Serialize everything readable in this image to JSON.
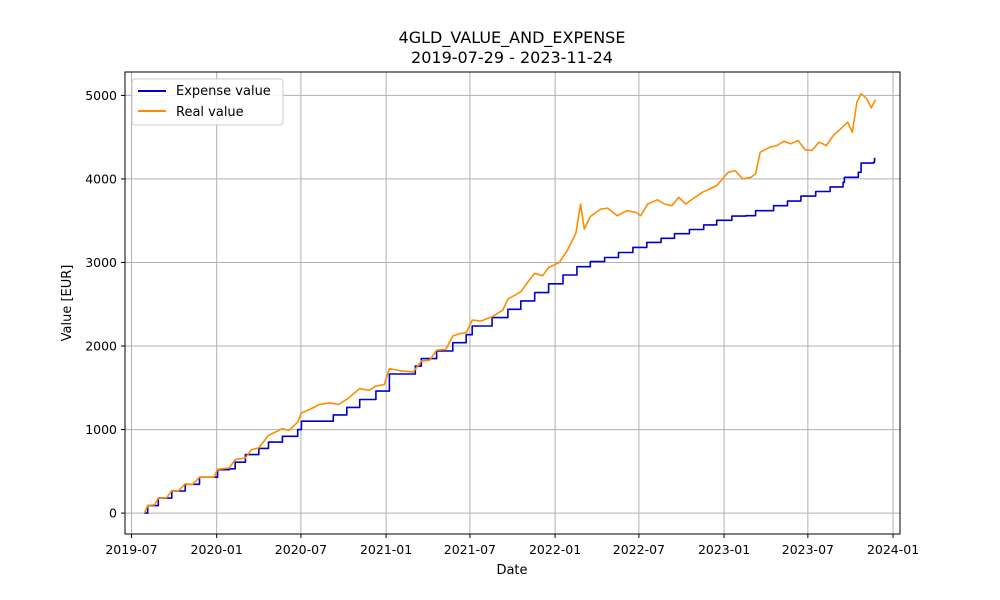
{
  "chart_data": {
    "type": "line",
    "title": "4GLD_VALUE_AND_EXPENSE",
    "subtitle": "2019-07-29 - 2023-11-24",
    "xlabel": "Date",
    "ylabel": "Value [EUR]",
    "x_range": [
      "2019-06-17",
      "2024-01-16"
    ],
    "ylim": [
      -250,
      5280
    ],
    "x_ticks": [
      "2019-07",
      "2020-01",
      "2020-07",
      "2021-01",
      "2021-07",
      "2022-01",
      "2022-07",
      "2023-01",
      "2023-07",
      "2024-01"
    ],
    "x_tick_dates": [
      "2019-07-01",
      "2020-01-01",
      "2020-07-01",
      "2021-01-01",
      "2021-07-01",
      "2022-01-01",
      "2022-07-01",
      "2023-01-01",
      "2023-07-01",
      "2024-01-01"
    ],
    "y_ticks": [
      0,
      1000,
      2000,
      3000,
      4000,
      5000
    ],
    "grid": true,
    "legend_position": "top-left",
    "series": [
      {
        "name": "Expense value",
        "color": "#0000cc",
        "step": true,
        "points": [
          [
            "2019-07-29",
            0
          ],
          [
            "2019-08-05",
            90
          ],
          [
            "2019-08-28",
            180
          ],
          [
            "2019-09-26",
            265
          ],
          [
            "2019-10-25",
            345
          ],
          [
            "2019-11-25",
            430
          ],
          [
            "2019-12-26",
            430
          ],
          [
            "2020-01-03",
            520
          ],
          [
            "2020-01-28",
            530
          ],
          [
            "2020-02-10",
            610
          ],
          [
            "2020-03-03",
            700
          ],
          [
            "2020-04-01",
            775
          ],
          [
            "2020-04-22",
            850
          ],
          [
            "2020-05-22",
            920
          ],
          [
            "2020-06-24",
            1000
          ],
          [
            "2020-07-02",
            1100
          ],
          [
            "2020-09-09",
            1175
          ],
          [
            "2020-10-08",
            1265
          ],
          [
            "2020-11-05",
            1360
          ],
          [
            "2020-12-10",
            1460
          ],
          [
            "2021-01-08",
            1665
          ],
          [
            "2021-03-05",
            1760
          ],
          [
            "2021-03-18",
            1850
          ],
          [
            "2021-04-20",
            1940
          ],
          [
            "2021-05-25",
            2040
          ],
          [
            "2021-06-23",
            2135
          ],
          [
            "2021-07-06",
            2240
          ],
          [
            "2021-08-18",
            2340
          ],
          [
            "2021-09-21",
            2440
          ],
          [
            "2021-10-19",
            2540
          ],
          [
            "2021-11-18",
            2640
          ],
          [
            "2021-12-18",
            2745
          ],
          [
            "2022-01-18",
            2850
          ],
          [
            "2022-02-17",
            2950
          ],
          [
            "2022-03-18",
            3010
          ],
          [
            "2022-04-18",
            3060
          ],
          [
            "2022-05-18",
            3120
          ],
          [
            "2022-06-18",
            3180
          ],
          [
            "2022-07-18",
            3240
          ],
          [
            "2022-08-18",
            3290
          ],
          [
            "2022-09-16",
            3345
          ],
          [
            "2022-10-18",
            3395
          ],
          [
            "2022-11-18",
            3450
          ],
          [
            "2022-12-16",
            3505
          ],
          [
            "2023-01-18",
            3555
          ],
          [
            "2023-02-17",
            3560
          ],
          [
            "2023-03-10",
            3620
          ],
          [
            "2023-04-18",
            3680
          ],
          [
            "2023-05-18",
            3735
          ],
          [
            "2023-06-16",
            3795
          ],
          [
            "2023-07-18",
            3850
          ],
          [
            "2023-08-18",
            3905
          ],
          [
            "2023-09-15",
            3960
          ],
          [
            "2023-09-18",
            4020
          ],
          [
            "2023-10-18",
            4080
          ],
          [
            "2023-10-24",
            4190
          ],
          [
            "2023-11-20",
            4200
          ],
          [
            "2023-11-22",
            4245
          ],
          [
            "2023-11-24",
            4245
          ]
        ]
      },
      {
        "name": "Real value",
        "color": "#ff8c00",
        "step": false,
        "points": [
          [
            "2019-07-29",
            0
          ],
          [
            "2019-08-05",
            90
          ],
          [
            "2019-08-20",
            100
          ],
          [
            "2019-08-28",
            180
          ],
          [
            "2019-09-15",
            185
          ],
          [
            "2019-09-26",
            270
          ],
          [
            "2019-10-10",
            265
          ],
          [
            "2019-10-25",
            350
          ],
          [
            "2019-11-10",
            345
          ],
          [
            "2019-11-25",
            430
          ],
          [
            "2019-12-26",
            430
          ],
          [
            "2020-01-03",
            525
          ],
          [
            "2020-01-28",
            540
          ],
          [
            "2020-02-10",
            640
          ],
          [
            "2020-03-03",
            660
          ],
          [
            "2020-03-16",
            760
          ],
          [
            "2020-04-01",
            780
          ],
          [
            "2020-04-22",
            930
          ],
          [
            "2020-05-22",
            1010
          ],
          [
            "2020-06-05",
            990
          ],
          [
            "2020-06-24",
            1090
          ],
          [
            "2020-07-02",
            1200
          ],
          [
            "2020-07-20",
            1240
          ],
          [
            "2020-08-10",
            1300
          ],
          [
            "2020-09-01",
            1320
          ],
          [
            "2020-09-20",
            1300
          ],
          [
            "2020-10-10",
            1370
          ],
          [
            "2020-11-05",
            1490
          ],
          [
            "2020-11-25",
            1470
          ],
          [
            "2020-12-10",
            1520
          ],
          [
            "2020-12-28",
            1540
          ],
          [
            "2021-01-08",
            1730
          ],
          [
            "2021-02-05",
            1700
          ],
          [
            "2021-03-01",
            1690
          ],
          [
            "2021-03-18",
            1820
          ],
          [
            "2021-04-05",
            1830
          ],
          [
            "2021-04-20",
            1950
          ],
          [
            "2021-05-10",
            1960
          ],
          [
            "2021-05-25",
            2120
          ],
          [
            "2021-06-10",
            2150
          ],
          [
            "2021-06-23",
            2160
          ],
          [
            "2021-07-06",
            2310
          ],
          [
            "2021-07-25",
            2300
          ],
          [
            "2021-08-18",
            2350
          ],
          [
            "2021-09-10",
            2430
          ],
          [
            "2021-09-21",
            2560
          ],
          [
            "2021-10-19",
            2650
          ],
          [
            "2021-11-05",
            2780
          ],
          [
            "2021-11-18",
            2870
          ],
          [
            "2021-12-05",
            2840
          ],
          [
            "2021-12-18",
            2940
          ],
          [
            "2022-01-10",
            3000
          ],
          [
            "2022-01-28",
            3150
          ],
          [
            "2022-02-15",
            3350
          ],
          [
            "2022-02-25",
            3700
          ],
          [
            "2022-03-05",
            3400
          ],
          [
            "2022-03-18",
            3550
          ],
          [
            "2022-04-10",
            3640
          ],
          [
            "2022-04-25",
            3650
          ],
          [
            "2022-05-15",
            3560
          ],
          [
            "2022-06-05",
            3620
          ],
          [
            "2022-06-25",
            3600
          ],
          [
            "2022-07-05",
            3560
          ],
          [
            "2022-07-20",
            3700
          ],
          [
            "2022-08-10",
            3750
          ],
          [
            "2022-08-25",
            3700
          ],
          [
            "2022-09-10",
            3680
          ],
          [
            "2022-09-25",
            3780
          ],
          [
            "2022-10-10",
            3700
          ],
          [
            "2022-10-25",
            3760
          ],
          [
            "2022-11-15",
            3840
          ],
          [
            "2022-12-01",
            3880
          ],
          [
            "2022-12-16",
            3920
          ],
          [
            "2023-01-10",
            4080
          ],
          [
            "2023-01-25",
            4100
          ],
          [
            "2023-02-10",
            4000
          ],
          [
            "2023-02-28",
            4020
          ],
          [
            "2023-03-10",
            4060
          ],
          [
            "2023-03-20",
            4320
          ],
          [
            "2023-04-10",
            4380
          ],
          [
            "2023-04-25",
            4400
          ],
          [
            "2023-05-10",
            4450
          ],
          [
            "2023-05-25",
            4420
          ],
          [
            "2023-06-10",
            4460
          ],
          [
            "2023-06-25",
            4350
          ],
          [
            "2023-07-10",
            4340
          ],
          [
            "2023-07-25",
            4440
          ],
          [
            "2023-08-10",
            4400
          ],
          [
            "2023-08-25",
            4520
          ],
          [
            "2023-09-10",
            4600
          ],
          [
            "2023-09-25",
            4680
          ],
          [
            "2023-10-05",
            4560
          ],
          [
            "2023-10-15",
            4920
          ],
          [
            "2023-10-24",
            5020
          ],
          [
            "2023-11-05",
            4960
          ],
          [
            "2023-11-15",
            4850
          ],
          [
            "2023-11-24",
            4950
          ]
        ]
      }
    ]
  }
}
